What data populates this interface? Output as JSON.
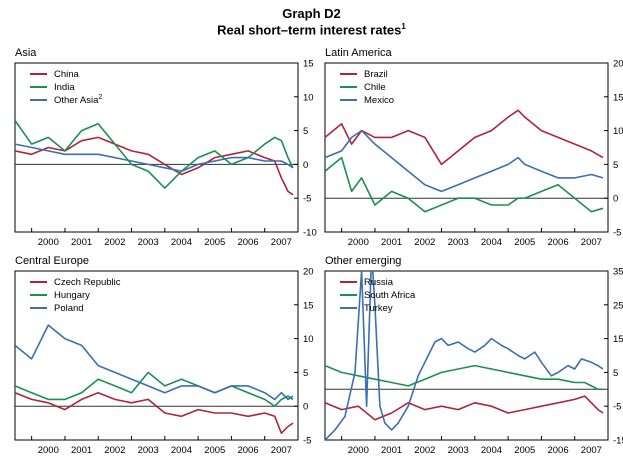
{
  "header": {
    "number": "Graph D2",
    "title": "Real short–term interest rates",
    "title_note": "1"
  },
  "colors": {
    "red": "#b0243a",
    "green": "#1a9150",
    "blue": "#3a6fb0",
    "axis": "#000000",
    "zero": "#333333"
  },
  "chart_data": [
    {
      "type": "line",
      "title": "Asia",
      "x_ticks": [
        "2000",
        "2001",
        "2002",
        "2003",
        "2004",
        "2005",
        "2006",
        "2007"
      ],
      "xlim": [
        1999.5,
        2008.0
      ],
      "ylim": [
        -10,
        15
      ],
      "y_ticks": [
        -10,
        -5,
        0,
        5,
        10,
        15
      ],
      "y_axis_side": "right",
      "legend_position": "top-left",
      "series": [
        {
          "name": "China",
          "note": "",
          "color": "red",
          "x": [
            1999.5,
            2000,
            2000.5,
            2001,
            2001.5,
            2002,
            2002.5,
            2003,
            2003.5,
            2004,
            2004.5,
            2005,
            2005.5,
            2006,
            2006.5,
            2007,
            2007.3,
            2007.5,
            2007.7,
            2007.85
          ],
          "values": [
            2,
            1.5,
            2.5,
            2,
            3.5,
            4,
            3,
            2,
            1.5,
            0,
            -1.5,
            -0.5,
            1,
            1.5,
            2,
            1,
            0.5,
            -2,
            -4,
            -4.5
          ]
        },
        {
          "name": "India",
          "note": "",
          "color": "green",
          "x": [
            1999.5,
            2000,
            2000.5,
            2001,
            2001.5,
            2002,
            2002.5,
            2003,
            2003.5,
            2004,
            2004.5,
            2005,
            2005.5,
            2006,
            2006.5,
            2007,
            2007.3,
            2007.5,
            2007.7,
            2007.85
          ],
          "values": [
            6.5,
            3,
            4,
            2,
            5,
            6,
            3,
            0,
            -1,
            -3.5,
            -1,
            1,
            2,
            0,
            1,
            3,
            4,
            3.5,
            1,
            -0.5
          ]
        },
        {
          "name": "Other Asia",
          "note": "2",
          "color": "blue",
          "x": [
            1999.5,
            2000,
            2000.5,
            2001,
            2001.5,
            2002,
            2002.5,
            2003,
            2003.5,
            2004,
            2004.5,
            2005,
            2005.5,
            2006,
            2006.5,
            2007,
            2007.3,
            2007.5,
            2007.7,
            2007.85
          ],
          "values": [
            3,
            2.5,
            2,
            1.5,
            1.5,
            1.5,
            1,
            0.5,
            0,
            -0.5,
            -1,
            0,
            0.5,
            1,
            1,
            0.5,
            0.5,
            0.5,
            0,
            -0.5
          ]
        }
      ]
    },
    {
      "type": "line",
      "title": "Latin America",
      "x_ticks": [
        "2000",
        "2001",
        "2002",
        "2003",
        "2004",
        "2005",
        "2006",
        "2007"
      ],
      "xlim": [
        1999.5,
        2008.0
      ],
      "ylim": [
        -5,
        20
      ],
      "y_ticks": [
        -5,
        0,
        5,
        10,
        15,
        20
      ],
      "y_axis_side": "right",
      "legend_position": "top-left",
      "series": [
        {
          "name": "Brazil",
          "note": "",
          "color": "red",
          "x": [
            1999.5,
            2000,
            2000.3,
            2000.6,
            2001,
            2001.5,
            2002,
            2002.5,
            2003,
            2003.5,
            2004,
            2004.5,
            2005,
            2005.3,
            2005.5,
            2006,
            2006.5,
            2007,
            2007.5,
            2007.85
          ],
          "values": [
            9,
            11,
            8,
            10,
            9,
            9,
            10,
            9,
            5,
            7,
            9,
            10,
            12,
            13,
            12,
            10,
            9,
            8,
            7,
            6
          ]
        },
        {
          "name": "Chile",
          "note": "",
          "color": "green",
          "x": [
            1999.5,
            2000,
            2000.3,
            2000.6,
            2001,
            2001.5,
            2002,
            2002.5,
            2003,
            2003.5,
            2004,
            2004.5,
            2005,
            2005.3,
            2005.5,
            2006,
            2006.5,
            2007,
            2007.5,
            2007.85
          ],
          "values": [
            4,
            6,
            1,
            3,
            -1,
            1,
            0,
            -2,
            -1,
            0,
            0,
            -1,
            -1,
            0,
            0,
            1,
            2,
            0,
            -2,
            -1.5
          ]
        },
        {
          "name": "Mexico",
          "note": "",
          "color": "blue",
          "x": [
            1999.5,
            2000,
            2000.3,
            2000.6,
            2001,
            2001.5,
            2002,
            2002.5,
            2003,
            2003.5,
            2004,
            2004.5,
            2005,
            2005.3,
            2005.5,
            2006,
            2006.5,
            2007,
            2007.5,
            2007.85
          ],
          "values": [
            6,
            7,
            9,
            10,
            8,
            6,
            4,
            2,
            1,
            2,
            3,
            4,
            5,
            6,
            5,
            4,
            3,
            3,
            3.5,
            3
          ]
        }
      ]
    },
    {
      "type": "line",
      "title": "Central Europe",
      "x_ticks": [
        "2000",
        "2001",
        "2002",
        "2003",
        "2004",
        "2005",
        "2006",
        "2007"
      ],
      "xlim": [
        1999.5,
        2008.0
      ],
      "ylim": [
        -5,
        20
      ],
      "y_ticks": [
        -5,
        0,
        5,
        10,
        15,
        20
      ],
      "y_axis_side": "right",
      "legend_position": "top-left",
      "series": [
        {
          "name": "Czech Republic",
          "note": "",
          "color": "red",
          "x": [
            1999.5,
            2000,
            2000.5,
            2001,
            2001.5,
            2002,
            2002.5,
            2003,
            2003.5,
            2004,
            2004.5,
            2005,
            2005.5,
            2006,
            2006.5,
            2007,
            2007.3,
            2007.5,
            2007.7,
            2007.85
          ],
          "values": [
            2,
            1,
            0.5,
            -0.5,
            1,
            2,
            1,
            0.5,
            1,
            -1,
            -1.5,
            -0.5,
            -1,
            -1,
            -1.5,
            -1,
            -1.5,
            -4,
            -3,
            -2.5
          ]
        },
        {
          "name": "Hungary",
          "note": "",
          "color": "green",
          "x": [
            1999.5,
            2000,
            2000.5,
            2001,
            2001.5,
            2002,
            2002.5,
            2003,
            2003.5,
            2004,
            2004.5,
            2005,
            2005.5,
            2006,
            2006.5,
            2007,
            2007.3,
            2007.5,
            2007.7,
            2007.85
          ],
          "values": [
            3,
            2,
            1,
            1,
            2,
            4,
            3,
            2,
            5,
            3,
            4,
            3,
            2,
            3,
            2,
            1,
            0,
            1,
            1.5,
            1
          ]
        },
        {
          "name": "Poland",
          "note": "",
          "color": "blue",
          "x": [
            1999.5,
            2000,
            2000.5,
            2001,
            2001.5,
            2002,
            2002.5,
            2003,
            2003.5,
            2004,
            2004.5,
            2005,
            2005.5,
            2006,
            2006.5,
            2007,
            2007.3,
            2007.5,
            2007.7,
            2007.85
          ],
          "values": [
            9,
            7,
            12,
            10,
            9,
            6,
            5,
            4,
            3,
            2,
            3,
            3,
            2,
            3,
            3,
            2,
            1,
            2,
            1,
            1.5
          ]
        }
      ]
    },
    {
      "type": "line",
      "title": "Other emerging",
      "x_ticks": [
        "2000",
        "2001",
        "2002",
        "2003",
        "2004",
        "2005",
        "2006",
        "2007"
      ],
      "xlim": [
        1999.5,
        2008.0
      ],
      "ylim": [
        -15,
        35
      ],
      "y_ticks": [
        -15,
        -5,
        5,
        15,
        25,
        35
      ],
      "y_axis_side": "right",
      "legend_position": "top-left",
      "series": [
        {
          "name": "Russia",
          "note": "",
          "color": "red",
          "x": [
            1999.5,
            2000,
            2000.5,
            2001,
            2001.5,
            2002,
            2002.5,
            2003,
            2003.5,
            2004,
            2004.5,
            2005,
            2005.5,
            2006,
            2006.5,
            2007,
            2007.3,
            2007.5,
            2007.7,
            2007.85
          ],
          "values": [
            -4,
            -6,
            -5,
            -9,
            -7,
            -4,
            -6,
            -5,
            -6,
            -4,
            -5,
            -7,
            -6,
            -5,
            -4,
            -3,
            -2,
            -4,
            -6,
            -7
          ]
        },
        {
          "name": "South Africa",
          "note": "",
          "color": "green",
          "x": [
            1999.5,
            2000,
            2000.5,
            2001,
            2001.5,
            2002,
            2002.5,
            2003,
            2003.5,
            2004,
            2004.5,
            2005,
            2005.5,
            2006,
            2006.5,
            2007,
            2007.3,
            2007.5,
            2007.7,
            2007.85
          ],
          "values": [
            7,
            5,
            4,
            3,
            2,
            1,
            3,
            5,
            6,
            7,
            6,
            5,
            4,
            3,
            3,
            2,
            2,
            1,
            0,
            0
          ]
        },
        {
          "name": "Turkey",
          "note": "",
          "color": "blue",
          "x": [
            1999.5,
            1999.8,
            2000.1,
            2000.4,
            2000.6,
            2000.75,
            2000.9,
            2001,
            2001.15,
            2001.3,
            2001.5,
            2001.7,
            2002,
            2002.3,
            2002.6,
            2002.8,
            2003,
            2003.2,
            2003.5,
            2003.8,
            2004,
            2004.3,
            2004.5,
            2004.8,
            2005,
            2005.3,
            2005.5,
            2005.8,
            2006,
            2006.3,
            2006.5,
            2006.8,
            2007,
            2007.2,
            2007.5,
            2007.7,
            2007.85
          ],
          "values": [
            -15,
            -12,
            -8,
            5,
            35,
            -5,
            40,
            25,
            -5,
            -10,
            -12,
            -10,
            -5,
            4,
            10,
            14,
            15,
            13,
            14,
            12,
            11,
            13,
            15,
            13,
            12,
            10,
            9,
            11,
            8,
            4,
            5,
            7,
            6,
            9,
            8,
            7,
            6
          ]
        }
      ]
    }
  ]
}
